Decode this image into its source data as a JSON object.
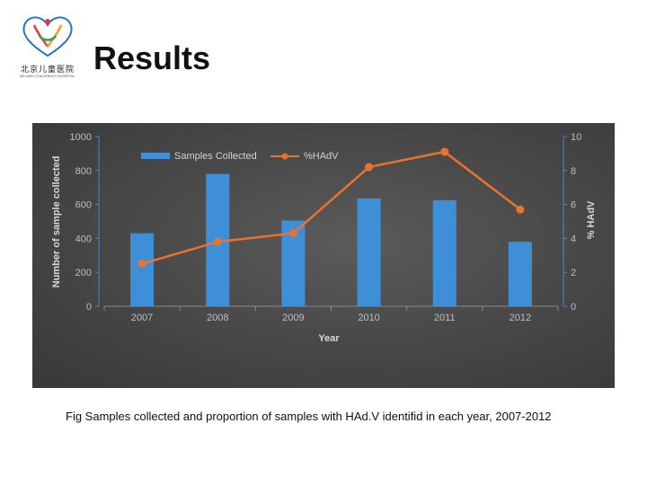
{
  "header": {
    "logo_text": "北京儿童医院",
    "logo_subtext": "BEIJING CHILDREN'S HOSPITAL",
    "title": "Results"
  },
  "caption": "Fig Samples collected and proportion of samples with HAd.V identifid in each year, 2007-2012",
  "colors": {
    "bar": "#3f8fd8",
    "line": "#e8732f",
    "panel_bg": "#4a4a4a"
  },
  "chart_data": {
    "type": "bar",
    "categories": [
      "2007",
      "2008",
      "2009",
      "2010",
      "2011",
      "2012"
    ],
    "series": [
      {
        "name": "Samples Collected",
        "type": "bar",
        "axis": "left",
        "values": [
          430,
          780,
          505,
          635,
          625,
          380
        ]
      },
      {
        "name": "%HAdV",
        "type": "line",
        "axis": "right",
        "values": [
          2.5,
          3.8,
          4.3,
          8.2,
          9.1,
          5.7
        ]
      }
    ],
    "xlabel": "Year",
    "ylabel": "Number of sample collected",
    "y2label": "% HAdV",
    "ylim": [
      0,
      1000
    ],
    "y2lim": [
      0,
      10
    ],
    "yticks": [
      "0",
      "200",
      "400",
      "600",
      "800",
      "1000"
    ],
    "y2ticks": [
      "0",
      "2",
      "4",
      "6",
      "8",
      "10"
    ],
    "grid": false,
    "legend": "top-left"
  }
}
